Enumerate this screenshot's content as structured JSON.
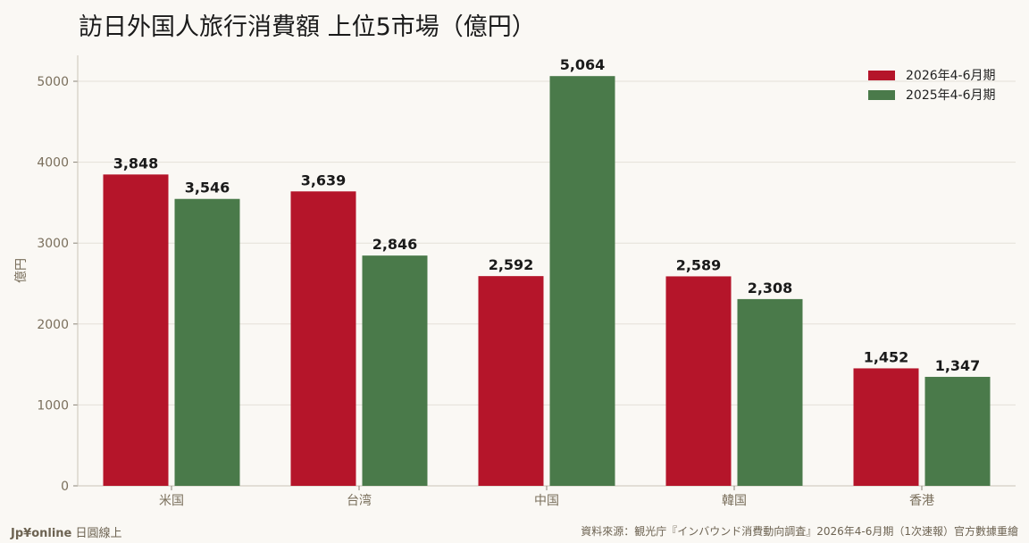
{
  "title": "訪日外国人旅行消費額 上位5市場（億円）",
  "footer": {
    "brand": "Jp¥online",
    "brand_sub": "日圓線上",
    "source": "資料來源：観光庁『インバウンド消費動向調査』2026年4-6月期（1次速報）官方數據重繪"
  },
  "chart_data": {
    "type": "bar",
    "title": "訪日外国人旅行消費額 上位5市場（億円）",
    "xlabel": "",
    "ylabel": "億円",
    "categories": [
      "米国",
      "台湾",
      "中国",
      "韓国",
      "香港"
    ],
    "series": [
      {
        "name": "2026年4-6月期",
        "color": "#b5152a",
        "values": [
          3848,
          3639,
          2592,
          2589,
          1452
        ],
        "labels": [
          "3,848",
          "3,639",
          "2,592",
          "2,589",
          "1,452"
        ]
      },
      {
        "name": "2025年4-6月期",
        "color": "#4a7a4a",
        "values": [
          3546,
          2846,
          5064,
          2308,
          1347
        ],
        "labels": [
          "3,546",
          "2,846",
          "5,064",
          "2,308",
          "1,347"
        ]
      }
    ],
    "yticks": [
      0,
      1000,
      2000,
      3000,
      4000,
      5000
    ],
    "ylim": [
      0,
      5320
    ],
    "grid": true,
    "legend": "top-right"
  }
}
